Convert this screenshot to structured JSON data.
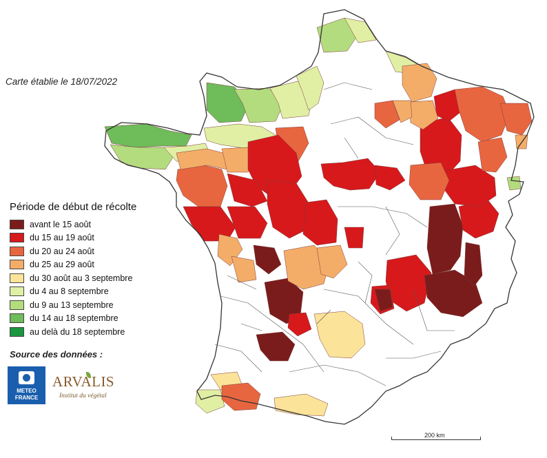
{
  "header": {
    "date_label": "Carte établie le 18/07/2022"
  },
  "legend": {
    "title": "Période de début de récolte",
    "items": [
      {
        "label": "avant le 15 août",
        "color": "#7b1c1c"
      },
      {
        "label": "du 15 au 19 août",
        "color": "#d7191c"
      },
      {
        "label": "du 20 au 24 août",
        "color": "#e8663f"
      },
      {
        "label": "du 25 au 29 août",
        "color": "#f4ad68"
      },
      {
        "label": "du 30 août au 3 septembre",
        "color": "#fbe399"
      },
      {
        "label": "du 4 au 8 septembre",
        "color": "#e0efa4"
      },
      {
        "label": "du 9 au 13 septembre",
        "color": "#b3dc7e"
      },
      {
        "label": "du 14 au 18 septembre",
        "color": "#6ebc5a"
      },
      {
        "label": "au delà du 18 septembre",
        "color": "#1a9641"
      }
    ]
  },
  "sources": {
    "label": "Source des données :",
    "meteo_line1": "METEO",
    "meteo_line2": "FRANCE",
    "arvalis_name": "ARVALIS",
    "arvalis_tagline": "Institut du végétal"
  },
  "scale": {
    "label": "200 km"
  },
  "map": {
    "base_color": "#ffffff",
    "border_color": "#333333"
  }
}
